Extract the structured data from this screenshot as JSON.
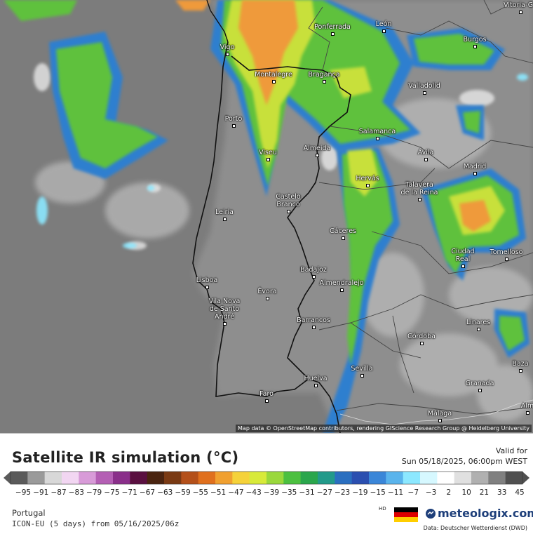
{
  "map": {
    "attribution": "Map data © OpenStreetMap contributors, rendering GIScience Research Group @ Heidelberg University",
    "cities": [
      {
        "name": "Vitoria-Ga"
      },
      {
        "name": "León"
      },
      {
        "name": "Ponferrada"
      },
      {
        "name": "Burgos"
      },
      {
        "name": "Vigo"
      },
      {
        "name": "Montalegre"
      },
      {
        "name": "Bragança"
      },
      {
        "name": "Valladolid"
      },
      {
        "name": "Porto"
      },
      {
        "name": "Salamanca"
      },
      {
        "name": "Viseu"
      },
      {
        "name": "Almeida"
      },
      {
        "name": "Ávila"
      },
      {
        "name": "Madrid"
      },
      {
        "name": "Hervás"
      },
      {
        "name": "Talavera\nde la Reina"
      },
      {
        "name": "Castelo\nBranco"
      },
      {
        "name": "Leiria"
      },
      {
        "name": "Cáceres"
      },
      {
        "name": "Ciudad\nReal"
      },
      {
        "name": "Tomelloso"
      },
      {
        "name": "Badajoz"
      },
      {
        "name": "Lisboa"
      },
      {
        "name": "Almendralejo"
      },
      {
        "name": "Évora"
      },
      {
        "name": "Vila Nova\nde Santo\nAndré"
      },
      {
        "name": "Barrancos"
      },
      {
        "name": "Linares"
      },
      {
        "name": "Córdoba"
      },
      {
        "name": "Baza"
      },
      {
        "name": "Sevilla"
      },
      {
        "name": "Huelva"
      },
      {
        "name": "Granada"
      },
      {
        "name": "Faro"
      },
      {
        "name": "Málaga"
      },
      {
        "name": "Alm"
      }
    ]
  },
  "legend": {
    "title": "Satellite IR simulation (°C)",
    "valid_label": "Valid for",
    "valid_value": "Sun 05/18/2025, 06:00pm WEST",
    "tick_labels": [
      "−95",
      "−91",
      "−87",
      "−83",
      "−79",
      "−75",
      "−71",
      "−67",
      "−63",
      "−59",
      "−55",
      "−51",
      "−47",
      "−43",
      "−39",
      "−35",
      "−31",
      "−27",
      "−23",
      "−19",
      "−15",
      "−11",
      "−7",
      "−3",
      "2",
      "10",
      "21",
      "33",
      "45"
    ],
    "region": "Portugal",
    "model": "ICON-EU (5 days) from 05/16/2025/06z",
    "hd_label": "HD",
    "brand": "meteologix.com",
    "source": "Data: Deutscher Wetterdienst (DWD)"
  },
  "colors": {
    "sea_gray": "#7c7c7c",
    "land_gray": "#8a8a8a",
    "cloud_green": "#5fc13c",
    "cloud_yellow": "#c8e03a",
    "cloud_orange": "#ef9a3a",
    "cloud_blue": "#2e7fcf",
    "cloud_cyan": "#8ce8ff",
    "brand_blue": "#1e3f7a"
  }
}
